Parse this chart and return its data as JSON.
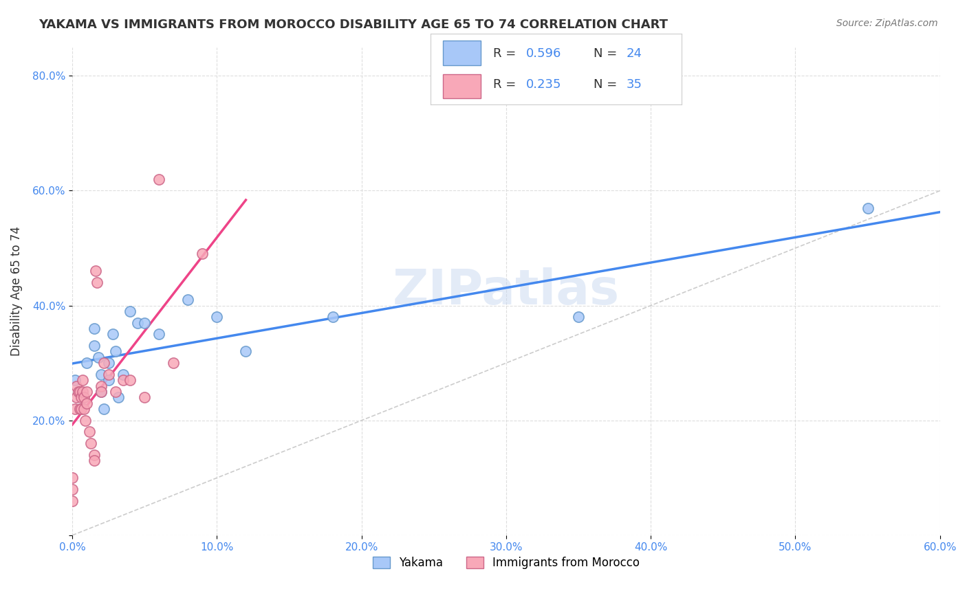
{
  "title": "YAKAMA VS IMMIGRANTS FROM MOROCCO DISABILITY AGE 65 TO 74 CORRELATION CHART",
  "source": "Source: ZipAtlas.com",
  "xlabel": "",
  "ylabel": "Disability Age 65 to 74",
  "xlim": [
    0.0,
    0.6
  ],
  "ylim": [
    0.0,
    0.85
  ],
  "x_ticks": [
    0.0,
    0.1,
    0.2,
    0.3,
    0.4,
    0.5,
    0.6
  ],
  "x_tick_labels": [
    "0.0%",
    "10.0%",
    "20.0%",
    "30.0%",
    "40.0%",
    "50.0%",
    "60.0%"
  ],
  "y_ticks": [
    0.0,
    0.2,
    0.4,
    0.6,
    0.8
  ],
  "y_tick_labels": [
    "",
    "20.0%",
    "40.0%",
    "60.0%",
    "80.0%"
  ],
  "yakama_R": 0.596,
  "yakama_N": 24,
  "morocco_R": 0.235,
  "morocco_N": 35,
  "yakama_color": "#a8c8f8",
  "morocco_color": "#f8a8b8",
  "yakama_edge": "#6699cc",
  "morocco_edge": "#cc6688",
  "trend_yakama_color": "#4488ee",
  "trend_morocco_color": "#ee4488",
  "diagonal_color": "#cccccc",
  "background_color": "#ffffff",
  "watermark": "ZIPatlas",
  "legend_R_color": "#4488ee",
  "legend_N_color": "#333333",
  "yakama_x": [
    0.002,
    0.01,
    0.015,
    0.015,
    0.018,
    0.02,
    0.02,
    0.022,
    0.025,
    0.025,
    0.028,
    0.03,
    0.032,
    0.035,
    0.04,
    0.045,
    0.05,
    0.06,
    0.08,
    0.1,
    0.12,
    0.18,
    0.35,
    0.55
  ],
  "yakama_y": [
    0.27,
    0.3,
    0.36,
    0.33,
    0.31,
    0.28,
    0.25,
    0.22,
    0.27,
    0.3,
    0.35,
    0.32,
    0.24,
    0.28,
    0.39,
    0.37,
    0.37,
    0.35,
    0.41,
    0.38,
    0.32,
    0.38,
    0.38,
    0.57
  ],
  "morocco_x": [
    0.0,
    0.0,
    0.0,
    0.002,
    0.003,
    0.003,
    0.004,
    0.005,
    0.005,
    0.006,
    0.006,
    0.007,
    0.007,
    0.008,
    0.008,
    0.009,
    0.01,
    0.01,
    0.012,
    0.013,
    0.015,
    0.015,
    0.016,
    0.017,
    0.02,
    0.02,
    0.022,
    0.025,
    0.03,
    0.035,
    0.04,
    0.05,
    0.06,
    0.07,
    0.09
  ],
  "morocco_y": [
    0.08,
    0.1,
    0.06,
    0.22,
    0.24,
    0.26,
    0.25,
    0.22,
    0.25,
    0.24,
    0.22,
    0.25,
    0.27,
    0.24,
    0.22,
    0.2,
    0.25,
    0.23,
    0.18,
    0.16,
    0.14,
    0.13,
    0.46,
    0.44,
    0.26,
    0.25,
    0.3,
    0.28,
    0.25,
    0.27,
    0.27,
    0.24,
    0.62,
    0.3,
    0.49
  ]
}
